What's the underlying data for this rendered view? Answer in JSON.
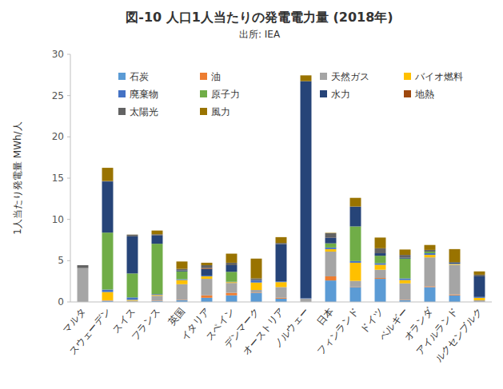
{
  "chart_data": {
    "type": "bar",
    "stacked": true,
    "title": "図-10  人口1人当たりの発電電力量 (2018年)",
    "subtitle": "出所: IEA",
    "y_label": "1人当たり発電量  MWh/人",
    "categories": [
      "マルタ",
      "スウェーデン",
      "スイス",
      "フランス",
      "英国",
      "イタリア",
      "スペイン",
      "デンマーク",
      "オーストリア",
      "ノルウェー",
      "日本",
      "フィンランド",
      "ドイツ",
      "ベルギー",
      "オランダ",
      "アイルランド",
      "ルクセンブルク"
    ],
    "ylim": [
      0,
      30
    ],
    "yticks": [
      0,
      5,
      10,
      15,
      20,
      25,
      30
    ],
    "grid": false,
    "legend": "top",
    "series": [
      {
        "name": "石炭",
        "color": "#5b9bd5",
        "values": [
          0,
          0.1,
          0,
          0.1,
          0.2,
          0.5,
          0.8,
          1.1,
          0.4,
          0,
          2.6,
          1.8,
          2.8,
          0.2,
          1.8,
          0.8,
          0
        ]
      },
      {
        "name": "油",
        "color": "#ed7d31",
        "values": [
          0,
          0.05,
          0,
          0.05,
          0.05,
          0.3,
          0.3,
          0.05,
          0.1,
          0,
          0.5,
          0.05,
          0.1,
          0.05,
          0.1,
          0.1,
          0
        ]
      },
      {
        "name": "天然ガス",
        "color": "#a5a5a5",
        "values": [
          4.1,
          0.05,
          0.15,
          0.6,
          1.9,
          2.0,
          1.2,
          0.3,
          1.3,
          0.4,
          3.0,
          0.7,
          1.0,
          2.0,
          3.5,
          3.6,
          0.2
        ]
      },
      {
        "name": "バイオ燃料",
        "color": "#ffc000",
        "values": [
          0,
          1.0,
          0.1,
          0.1,
          0.5,
          0.3,
          0.1,
          0.9,
          0.6,
          0,
          0.3,
          2.2,
          0.6,
          0.4,
          0.3,
          0.1,
          0.3
        ]
      },
      {
        "name": "廃棄物",
        "color": "#4472c4",
        "values": [
          0,
          0.3,
          0.3,
          0.1,
          0.1,
          0.1,
          0.05,
          0.3,
          0.1,
          0.05,
          0.2,
          0.2,
          0.2,
          0.2,
          0.2,
          0.05,
          0.1
        ]
      },
      {
        "name": "原子力",
        "color": "#70ad47",
        "values": [
          0,
          6.9,
          2.9,
          6.1,
          0.95,
          0,
          1.2,
          0,
          0,
          0,
          0.5,
          4.2,
          0.9,
          2.4,
          0.2,
          0,
          0
        ]
      },
      {
        "name": "水力",
        "color": "#264478",
        "values": [
          0,
          6.2,
          4.5,
          1.0,
          0.1,
          0.8,
          0.8,
          0,
          4.5,
          26.3,
          0.7,
          2.4,
          0.3,
          0.1,
          0,
          0.15,
          2.5
        ]
      },
      {
        "name": "地熱",
        "color": "#9e480e",
        "values": [
          0,
          0,
          0,
          0,
          0,
          0.1,
          0,
          0,
          0,
          0,
          0.02,
          0,
          0,
          0,
          0,
          0,
          0
        ]
      },
      {
        "name": "太陽光",
        "color": "#636363",
        "values": [
          0.35,
          0.05,
          0.2,
          0.15,
          0.2,
          0.35,
          0.3,
          0.2,
          0.15,
          0,
          0.5,
          0.01,
          0.6,
          0.35,
          0.2,
          0,
          0.2
        ]
      },
      {
        "name": "風力",
        "color": "#997300",
        "values": [
          0,
          1.6,
          0.01,
          0.45,
          0.9,
          0.3,
          1.1,
          2.4,
          0.7,
          0.7,
          0.05,
          1.05,
          1.3,
          0.65,
          0.6,
          1.6,
          0.4
        ]
      }
    ]
  }
}
